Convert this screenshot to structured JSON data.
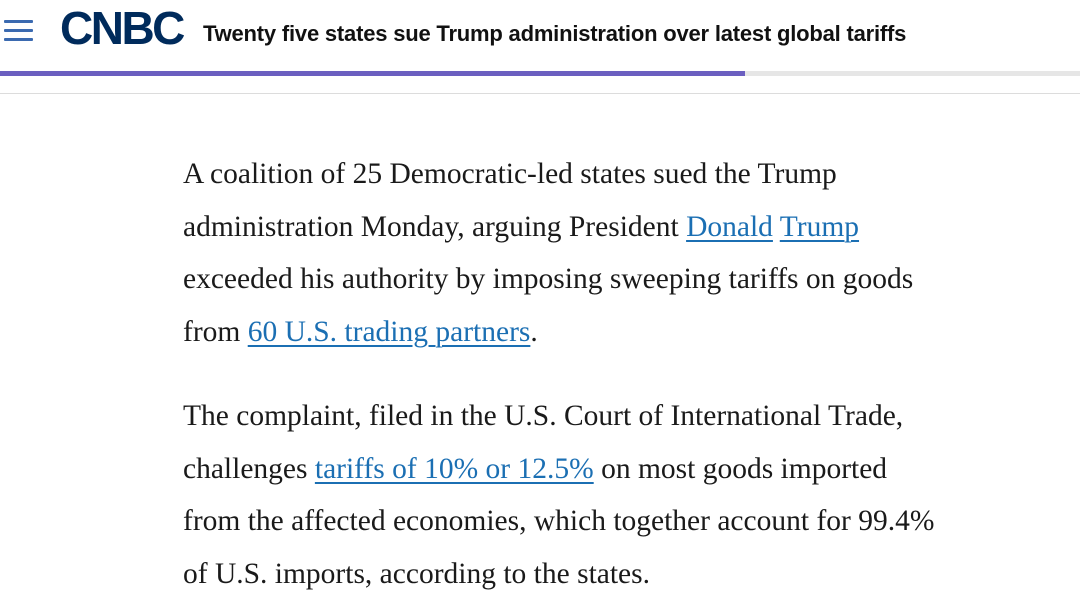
{
  "header": {
    "logo_text": "CNBC",
    "headline": "Twenty five states sue Trump administration over latest global tariffs",
    "reading_progress_percent": 69
  },
  "article": {
    "paragraph1": {
      "line1": "A coalition of 25 Democratic-led states sued the Trump",
      "line2_pre": "administration Monday, arguing President ",
      "link_donald": "Donald",
      "link_trump": "Trump",
      "line3": "exceeded his authority by imposing sweeping tariffs on goods",
      "line4_pre": "from ",
      "link_partners": "60 U.S. trading partners",
      "line4_post": "."
    },
    "paragraph2": {
      "line1": "The complaint, filed in the U.S. Court of International Trade,",
      "line2_pre": "challenges ",
      "link_tariffs": "tariffs of 10% or 12.5%",
      "line2_post": " on most goods imported",
      "line3": "from the affected economies, which together account for 99.4%",
      "line4": "of U.S. imports, according to the states."
    }
  },
  "colors": {
    "logo": "#002b5c",
    "menu_icon": "#3b6ab0",
    "progress": "#6b5fc0",
    "link": "#1b6fb3"
  }
}
